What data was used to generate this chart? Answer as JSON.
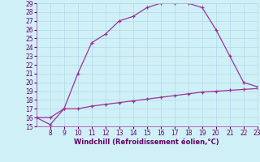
{
  "xlabel": "Windchill (Refroidissement éolien,°C)",
  "x_upper": [
    7,
    8,
    9,
    10,
    11,
    12,
    13,
    14,
    15,
    16,
    17,
    18,
    19,
    20,
    21,
    22,
    23
  ],
  "y_upper": [
    16,
    16,
    17,
    21,
    24.5,
    25.5,
    27,
    27.5,
    28.5,
    29,
    29,
    29,
    28.5,
    26,
    23,
    20,
    19.5
  ],
  "x_lower": [
    7,
    8,
    9,
    10,
    11,
    12,
    13,
    14,
    15,
    16,
    17,
    18,
    19,
    20,
    21,
    22,
    23
  ],
  "y_lower": [
    16,
    15.2,
    17,
    17,
    17.3,
    17.5,
    17.7,
    17.9,
    18.1,
    18.3,
    18.5,
    18.7,
    18.9,
    19.0,
    19.1,
    19.2,
    19.3
  ],
  "line_color": "#993399",
  "bg_color": "#d0f0f8",
  "grid_color": "#b0d8e8",
  "text_color": "#660066",
  "xlim": [
    7,
    23
  ],
  "ylim": [
    15,
    29
  ],
  "xticks": [
    8,
    9,
    10,
    11,
    12,
    13,
    14,
    15,
    16,
    17,
    18,
    19,
    20,
    21,
    22,
    23
  ],
  "yticks": [
    15,
    16,
    17,
    18,
    19,
    20,
    21,
    22,
    23,
    24,
    25,
    26,
    27,
    28,
    29
  ],
  "xlabel_fontsize": 6,
  "tick_fontsize": 5.5
}
